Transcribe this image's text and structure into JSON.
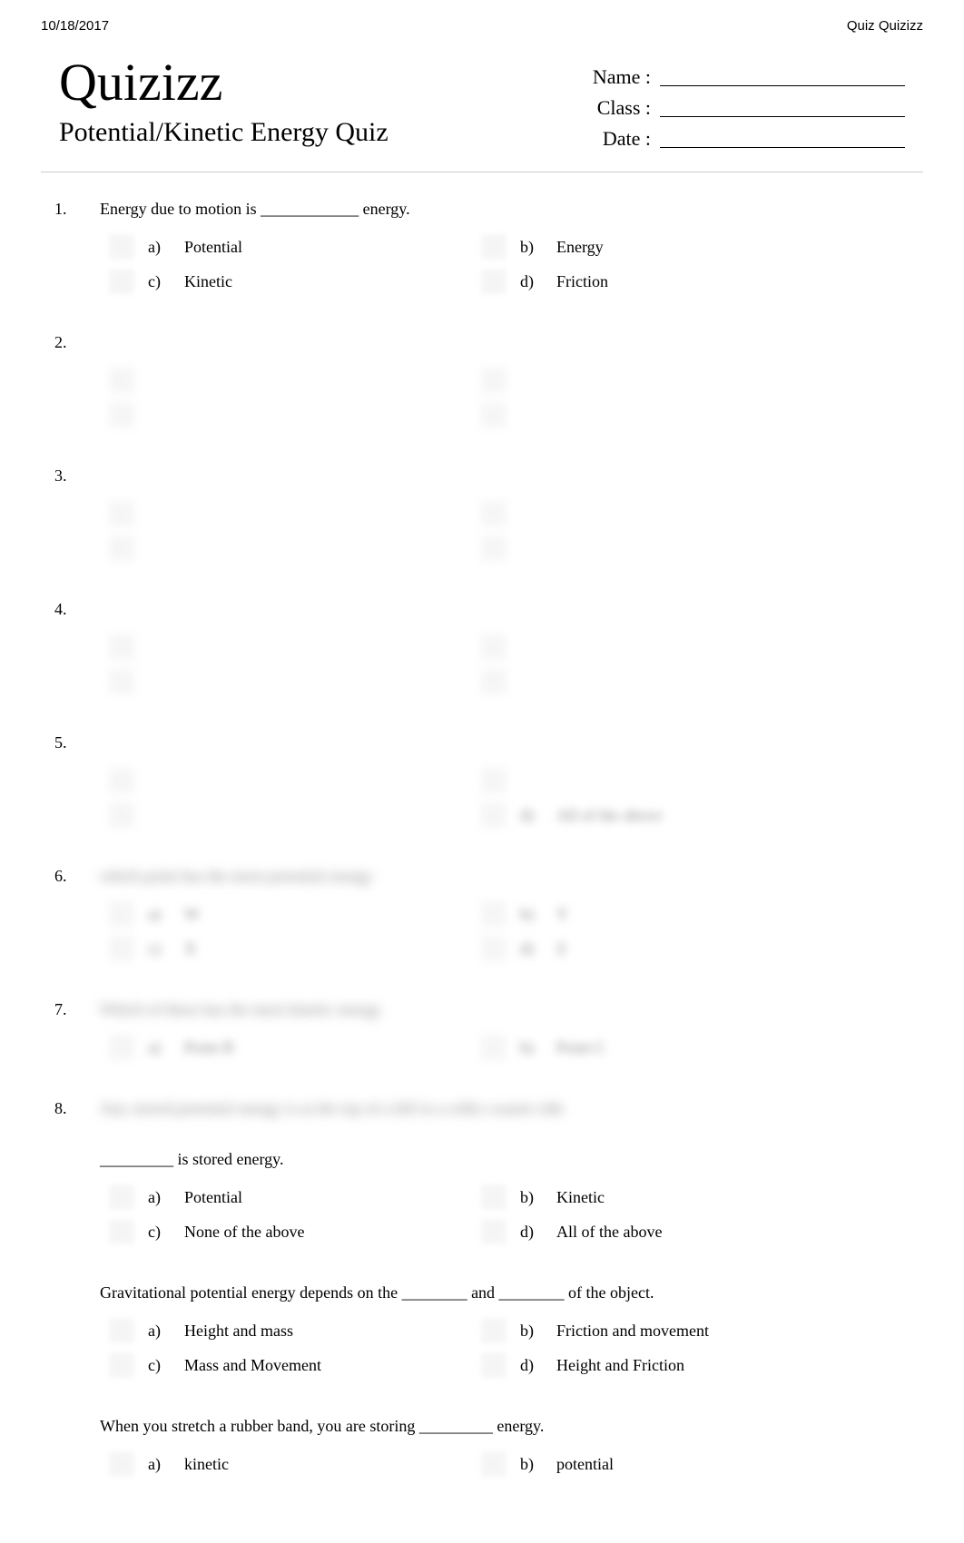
{
  "header": {
    "date": "10/18/2017",
    "sourceLabel": "Quiz  Quizizz"
  },
  "brand": "Quizizz",
  "quizTitle": "Potential/Kinetic Energy Quiz",
  "info": {
    "nameLabel": "Name :",
    "classLabel": "Class :",
    "dateLabel": "Date :"
  },
  "questions": [
    {
      "num": "1.",
      "text": "Energy due to motion is ____________ energy.",
      "blurred": false,
      "options": [
        {
          "letter": "a)",
          "text": "Potential"
        },
        {
          "letter": "b)",
          "text": "Energy"
        },
        {
          "letter": "c)",
          "text": "Kinetic"
        },
        {
          "letter": "d)",
          "text": "Friction"
        }
      ],
      "optsBlurred": false
    },
    {
      "num": "2.",
      "text": "",
      "blurred": true,
      "options": [
        {
          "letter": "",
          "text": ""
        },
        {
          "letter": "",
          "text": ""
        },
        {
          "letter": "",
          "text": ""
        },
        {
          "letter": "",
          "text": ""
        }
      ],
      "optsBlurred": true
    },
    {
      "num": "3.",
      "text": "",
      "blurred": true,
      "options": [
        {
          "letter": "",
          "text": ""
        },
        {
          "letter": "",
          "text": ""
        },
        {
          "letter": "",
          "text": ""
        },
        {
          "letter": "",
          "text": ""
        }
      ],
      "optsBlurred": true
    },
    {
      "num": "4.",
      "text": "",
      "blurred": true,
      "options": [
        {
          "letter": "",
          "text": ""
        },
        {
          "letter": "",
          "text": ""
        },
        {
          "letter": "",
          "text": ""
        },
        {
          "letter": "",
          "text": ""
        }
      ],
      "optsBlurred": true
    },
    {
      "num": "5.",
      "text": "",
      "blurred": true,
      "options": [
        {
          "letter": "",
          "text": ""
        },
        {
          "letter": "",
          "text": ""
        },
        {
          "letter": "",
          "text": ""
        },
        {
          "letter": "d)",
          "text": "All of the above"
        }
      ],
      "optsBlurred": true
    },
    {
      "num": "6.",
      "text": "which point has the most potential energy",
      "blurred": true,
      "options": [
        {
          "letter": "a)",
          "text": "W"
        },
        {
          "letter": "b)",
          "text": "Y"
        },
        {
          "letter": "c)",
          "text": "X"
        },
        {
          "letter": "d)",
          "text": "Z"
        }
      ],
      "optsBlurred": true
    },
    {
      "num": "7.",
      "text": "Which of these has the most kinetic energy",
      "blurred": true,
      "options": [
        {
          "letter": "a)",
          "text": "Point B"
        },
        {
          "letter": "b)",
          "text": "Point C"
        }
      ],
      "optsBlurred": true
    },
    {
      "num": "8.",
      "text": "Any stored potential energy is at the top of a hill in a roller coaster ride",
      "blurred": true,
      "options": [],
      "optsBlurred": true
    },
    {
      "num": "",
      "text": "_________ is stored energy.",
      "blurred": false,
      "noNum": true,
      "options": [
        {
          "letter": "a)",
          "text": "Potential"
        },
        {
          "letter": "b)",
          "text": "Kinetic"
        },
        {
          "letter": "c)",
          "text": "None of the above"
        },
        {
          "letter": "d)",
          "text": "All of the above"
        }
      ],
      "optsBlurred": false
    },
    {
      "num": "",
      "text": "Gravitational potential energy depends on the ________ and ________ of the object.",
      "blurred": false,
      "noNum": true,
      "options": [
        {
          "letter": "a)",
          "text": "Height and mass"
        },
        {
          "letter": "b)",
          "text": "Friction and movement"
        },
        {
          "letter": "c)",
          "text": "Mass and Movement"
        },
        {
          "letter": "d)",
          "text": "Height and Friction"
        }
      ],
      "optsBlurred": false
    },
    {
      "num": "",
      "text": "When you stretch a rubber band, you are storing _________ energy.",
      "blurred": false,
      "noNum": true,
      "options": [
        {
          "letter": "a)",
          "text": "kinetic"
        },
        {
          "letter": "b)",
          "text": "potential"
        }
      ],
      "optsBlurred": false
    }
  ]
}
